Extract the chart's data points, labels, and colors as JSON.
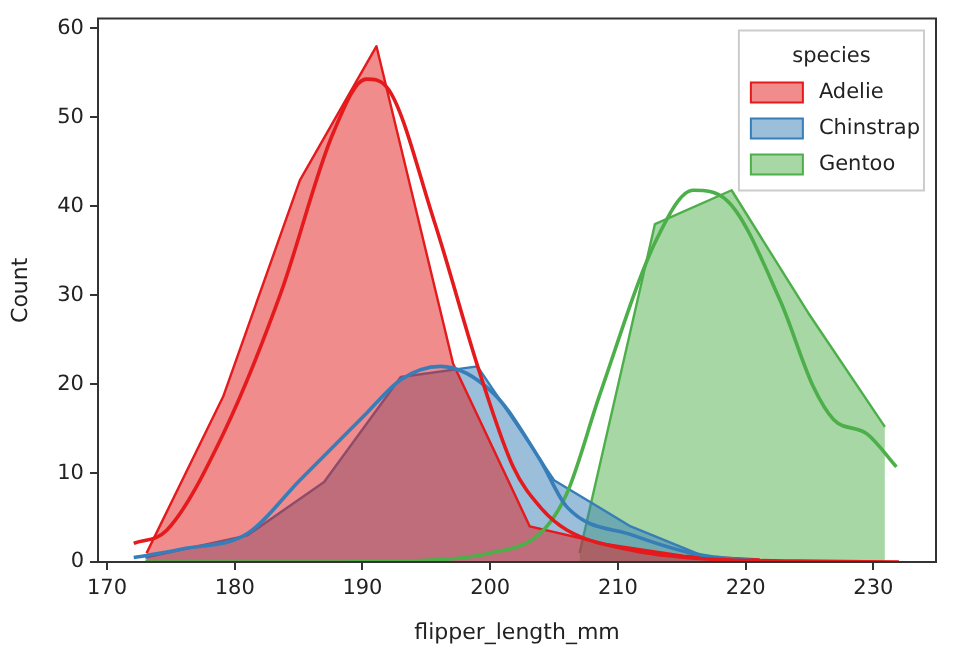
{
  "chart_data": {
    "type": "area",
    "xlabel": "flipper_length_mm",
    "ylabel": "Count",
    "legend_title": "species",
    "legend": "top right",
    "grid": false,
    "xlim": [
      169.3,
      234.9
    ],
    "xticks": [
      170,
      180,
      190,
      200,
      210,
      220,
      230
    ],
    "ylim": [
      0,
      61.1
    ],
    "yticks": [
      0,
      10,
      20,
      30,
      40,
      50,
      60
    ],
    "series": [
      {
        "name": "Adelie",
        "color": "#e41a1c",
        "x": [
          173.1,
          179.1,
          185.1,
          191.1,
          197.1,
          203.1,
          209.1,
          215.1,
          221.1
        ],
        "values": [
          1,
          18.6,
          42.9,
          58,
          22.3,
          4,
          2,
          0.7,
          0.3
        ]
      },
      {
        "name": "Chinstrap",
        "color": "#377eb8",
        "x": [
          173,
          181,
          187,
          193,
          199,
          205,
          211,
          217,
          223
        ],
        "values": [
          0.5,
          3,
          9,
          20.8,
          22,
          9.2,
          4,
          0.5,
          0
        ]
      },
      {
        "name": "Gentoo",
        "color": "#4daf4a",
        "x": [
          207,
          212.9,
          218.9,
          224.9,
          230.9
        ],
        "values": [
          1,
          38,
          41.8,
          28,
          15.2
        ]
      },
      {
        "type": "line",
        "color": "#e41a1c",
        "x": [
          172.1,
          174.7,
          179.1,
          183.6,
          187.7,
          190.3,
          191.9,
          195.6,
          199.2,
          201.8,
          203.9,
          206,
          211.2,
          216.4,
          224,
          232
        ],
        "values": [
          2.1,
          3.6,
          14.4,
          30.2,
          48.2,
          54.3,
          53.4,
          38.4,
          21.2,
          10.7,
          6.2,
          3.6,
          1.3,
          0.4,
          0.1,
          0
        ]
      },
      {
        "type": "line",
        "color": "#377eb8",
        "x": [
          172.1,
          176,
          181,
          185.1,
          190.3,
          193,
          196.1,
          200.3,
          203.9,
          206,
          211.2,
          216.4,
          222
        ],
        "values": [
          0.5,
          1.5,
          3.2,
          9.2,
          16.7,
          20.5,
          22,
          18.9,
          11.5,
          6.2,
          3,
          0.8,
          0
        ]
      },
      {
        "type": "line",
        "color": "#4daf4a",
        "x": [
          173,
          185,
          195,
          200,
          203.9,
          206,
          208.6,
          213,
          215.9,
          218.5,
          222.7,
          225.3,
          226.9,
          229.5,
          231.8
        ],
        "values": [
          0,
          0,
          0.2,
          1,
          3.2,
          7.7,
          18.9,
          36.2,
          41.8,
          40.7,
          29.4,
          19.7,
          16,
          14.4,
          10.7
        ]
      }
    ]
  }
}
